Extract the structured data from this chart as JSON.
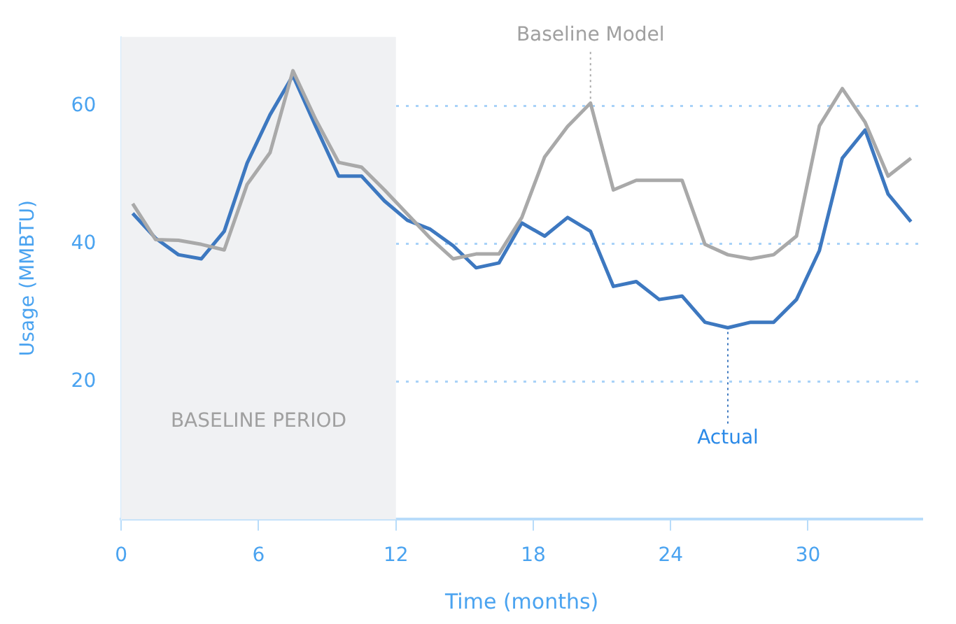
{
  "chart_data": {
    "type": "line",
    "xlabel": "Time (months)",
    "ylabel": "Usage (MMBTU)",
    "xlim": [
      0,
      35
    ],
    "xticks": [
      0,
      6,
      12,
      18,
      24,
      30
    ],
    "ylim": [
      0,
      70
    ],
    "yticks": [
      20,
      40,
      60
    ],
    "grid": "y",
    "legend": false,
    "marker": "none",
    "line_style": "solid",
    "x": [
      0.5,
      1.5,
      2.5,
      3.5,
      4.5,
      5.5,
      6.5,
      7.5,
      8.5,
      9.5,
      10.5,
      11.5,
      12.5,
      13.5,
      14.5,
      15.5,
      16.5,
      17.5,
      18.5,
      19.5,
      20.5,
      21.5,
      22.5,
      23.5,
      24.5,
      25.5,
      26.5,
      27.5,
      28.5,
      29.5,
      30.5,
      31.5,
      32.5,
      33.5,
      34.5
    ],
    "series": [
      {
        "color": "#a9a9a9",
        "values": [
          45.8,
          40.6,
          40.5,
          39.9,
          39.1,
          48.6,
          53.2,
          65.1,
          58.0,
          51.8,
          51.1,
          47.8,
          44.3,
          40.8,
          37.8,
          38.5,
          38.5,
          43.8,
          52.6,
          57.0,
          60.4,
          47.8,
          49.2,
          49.2,
          49.2,
          39.9,
          38.4,
          37.8,
          38.4,
          41.1,
          57.1,
          62.5,
          57.6,
          49.8,
          52.4
        ]
      },
      {
        "color": "#3d78c0",
        "values": [
          44.4,
          40.8,
          38.4,
          37.8,
          41.8,
          51.7,
          58.7,
          64.4,
          57.0,
          49.8,
          49.8,
          46.2,
          43.4,
          42.1,
          39.7,
          36.5,
          37.2,
          43.0,
          41.1,
          43.8,
          41.8,
          33.8,
          34.5,
          31.9,
          32.4,
          28.6,
          27.8,
          28.6,
          28.6,
          31.9,
          39.0,
          52.4,
          56.5,
          47.2,
          43.2
        ]
      }
    ],
    "bands": [
      {
        "axis": "x",
        "from": 0,
        "to": 12,
        "label": "BASELINE PERIOD",
        "color": "#f0f1f3"
      }
    ],
    "annotations": [
      {
        "text": "Baseline Model",
        "x": 20.5,
        "y": 60.4
      },
      {
        "text": "Actual",
        "x": 26.5,
        "y": 27.8
      }
    ]
  }
}
